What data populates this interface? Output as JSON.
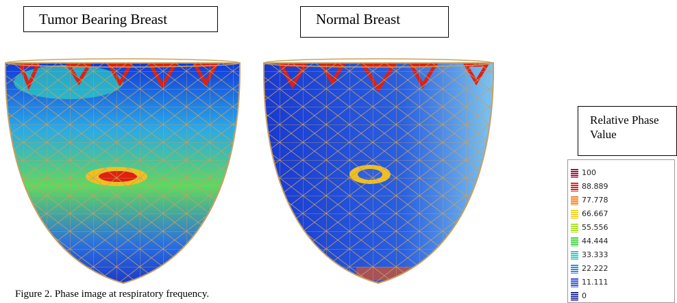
{
  "labels": {
    "left": "Tumor Bearing Breast",
    "right": "Normal Breast"
  },
  "legend": {
    "title": "Relative Phase Value",
    "ticks": [
      100,
      88.889,
      77.778,
      66.667,
      55.556,
      44.444,
      33.333,
      22.222,
      11.111,
      0
    ]
  },
  "caption": "Figure 2. Phase image at respiratory frequency."
}
